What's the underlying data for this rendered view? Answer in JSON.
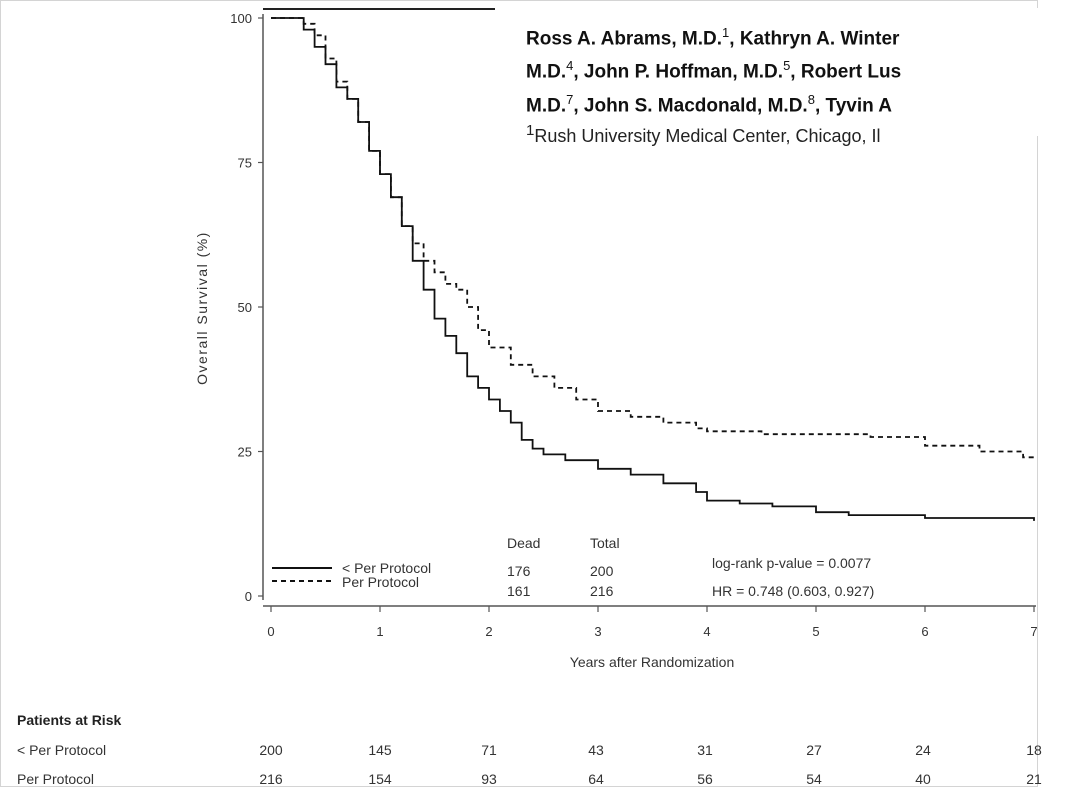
{
  "chart_data": {
    "type": "line",
    "step": true,
    "xlabel": "Years after Randomization",
    "ylabel": "Overall Survival (%)",
    "xlim": [
      0,
      7
    ],
    "ylim": [
      0,
      100
    ],
    "x_ticks": [
      "0",
      "1",
      "2",
      "3",
      "4",
      "5",
      "6",
      "7"
    ],
    "y_ticks": [
      "0",
      "25",
      "50",
      "75",
      "100"
    ],
    "series": [
      {
        "name": "< Per Protocol",
        "style": "solid",
        "x": [
          0,
          0.2,
          0.3,
          0.4,
          0.5,
          0.6,
          0.7,
          0.8,
          0.9,
          1.0,
          1.1,
          1.2,
          1.3,
          1.4,
          1.5,
          1.6,
          1.7,
          1.8,
          1.9,
          2.0,
          2.1,
          2.2,
          2.3,
          2.4,
          2.5,
          2.7,
          3.0,
          3.3,
          3.6,
          3.9,
          4.0,
          4.3,
          4.6,
          5.0,
          5.3,
          6.0,
          6.5,
          7.0
        ],
        "y": [
          100,
          100,
          98,
          95,
          92,
          88,
          86,
          82,
          77,
          73,
          69,
          64,
          58,
          53,
          48,
          45,
          42,
          38,
          36,
          34,
          32,
          30,
          27,
          25.5,
          24.5,
          23.5,
          22,
          21,
          19.5,
          18,
          16.5,
          16,
          15.5,
          14.5,
          14,
          13.5,
          13.5,
          13
        ]
      },
      {
        "name": "Per Protocol",
        "style": "dashed",
        "x": [
          0,
          0.3,
          0.4,
          0.5,
          0.6,
          0.7,
          0.8,
          0.9,
          1.0,
          1.1,
          1.2,
          1.3,
          1.4,
          1.5,
          1.6,
          1.7,
          1.8,
          1.9,
          2.0,
          2.2,
          2.4,
          2.6,
          2.8,
          3.0,
          3.3,
          3.6,
          3.9,
          4.0,
          4.5,
          5.0,
          5.5,
          6.0,
          6.5,
          6.9,
          7.0
        ],
        "y": [
          100,
          99,
          97,
          93,
          89,
          86,
          82,
          77,
          73,
          69,
          64,
          61,
          58,
          56,
          54,
          53,
          50,
          46,
          43,
          40,
          38,
          36,
          34,
          32,
          31,
          30,
          29,
          28.5,
          28,
          28,
          27.5,
          26,
          25,
          24,
          23.5
        ]
      }
    ],
    "stats_table": {
      "headers": [
        "Dead",
        "Total"
      ],
      "rows": [
        [
          "176",
          "200"
        ],
        [
          "161",
          "216"
        ]
      ]
    },
    "annotations": [
      "log-rank p-value = 0.0077",
      "HR = 0.748 (0.603, 0.927)"
    ],
    "legend_position": "bottom-left",
    "patients_at_risk": {
      "title": "Patients at Risk",
      "rows": [
        {
          "label": "< Per Protocol",
          "values": [
            "200",
            "145",
            "71",
            "43",
            "31",
            "27",
            "24",
            "18"
          ]
        },
        {
          "label": "Per Protocol",
          "values": [
            "216",
            "154",
            "93",
            "64",
            "56",
            "54",
            "40",
            "21"
          ]
        }
      ]
    }
  },
  "header_overlay": {
    "line1": {
      "text": "Ross A. Abrams, M.D.",
      "sup": "1",
      "text2": ", Kathryn A. Winter"
    },
    "line2": {
      "text": "M.D.",
      "sup": "4",
      "text2": ", John P. Hoffman, M.D.",
      "sup2": "5",
      "text3": ", Robert Lus"
    },
    "line3": {
      "text": "M.D.",
      "sup": "7",
      "text2": ", John S. Macdonald, M.D.",
      "sup2": "8",
      "text3": ", Tyvin A"
    },
    "affiliation": {
      "sup": "1",
      "text": "Rush University Medical Center, Chicago, Il"
    }
  },
  "colors": {
    "axis": "#555555",
    "line": "#111111",
    "text": "#333333"
  }
}
